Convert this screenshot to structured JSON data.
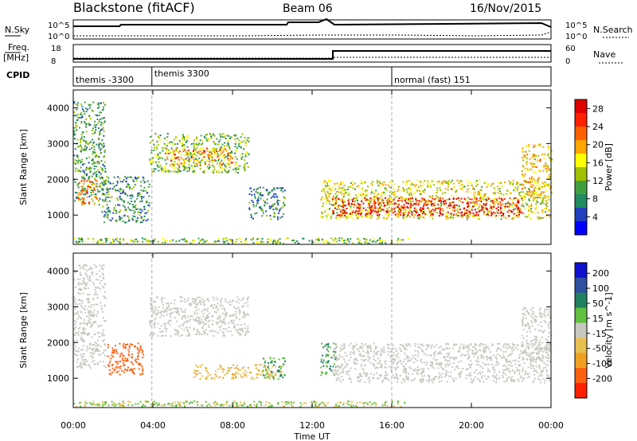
{
  "header": {
    "station": "Blackstone (fitACF)",
    "beam": "Beam 06",
    "date": "16/Nov/2015"
  },
  "noise_panel": {
    "left_label": "N.Sky",
    "right_label": "N.Search",
    "left_ticks": [
      "10^5",
      "10^0"
    ],
    "right_ticks": [
      "10^5",
      "10^0"
    ]
  },
  "freq_panel": {
    "left_label_top": "Freq.",
    "left_label_unit": "[MHz]",
    "left_ticks": [
      "18",
      "8"
    ],
    "right_label": "Nave",
    "right_ticks": [
      "60",
      "0"
    ]
  },
  "cpid_panel": {
    "label": "CPID",
    "programs": [
      {
        "name": "themis -3300",
        "start": 0.0
      },
      {
        "name": "themis 3300",
        "start": 3.95
      },
      {
        "name": "normal (fast) 151",
        "start": 16.0
      }
    ]
  },
  "chart_data": [
    {
      "type": "heatmap",
      "title": "Power",
      "ylabel": "Slant Range [km]",
      "xlabel": "Time UT",
      "x_ticks": [
        "00:00",
        "04:00",
        "08:00",
        "12:00",
        "16:00",
        "20:00",
        "00:00"
      ],
      "x_range_hours": [
        0,
        24
      ],
      "y_ticks": [
        1000,
        2000,
        3000,
        4000
      ],
      "ylim": [
        180,
        4500
      ],
      "colorbar_label": "Power [dB]",
      "colorbar_ticks": [
        4,
        8,
        12,
        16,
        20,
        24,
        28
      ],
      "colorbar_range": [
        0,
        30
      ],
      "colors": [
        "#0000ff",
        "#2040c0",
        "#208a60",
        "#40a040",
        "#a0c000",
        "#ffff00",
        "#ffa500",
        "#ff6000",
        "#ff2000",
        "#e00000"
      ],
      "blobs": [
        {
          "t0": 0.0,
          "t1": 1.6,
          "r0": 1300,
          "r1": 4200,
          "v": 10
        },
        {
          "t0": 0.2,
          "t1": 1.2,
          "r0": 1300,
          "r1": 2000,
          "v": 22
        },
        {
          "t0": 1.4,
          "t1": 3.8,
          "r0": 800,
          "r1": 2100,
          "v": 9
        },
        {
          "t0": 3.8,
          "t1": 8.8,
          "r0": 2200,
          "r1": 3300,
          "v": 12
        },
        {
          "t0": 4.5,
          "t1": 8.0,
          "r0": 2400,
          "r1": 2900,
          "v": 20
        },
        {
          "t0": 8.8,
          "t1": 10.6,
          "r0": 900,
          "r1": 1800,
          "v": 8
        },
        {
          "t0": 12.4,
          "t1": 23.9,
          "r0": 900,
          "r1": 2000,
          "v": 16
        },
        {
          "t0": 13.0,
          "t1": 22.5,
          "r0": 1000,
          "r1": 1500,
          "v": 28
        },
        {
          "t0": 22.5,
          "t1": 24.0,
          "r0": 1500,
          "r1": 3000,
          "v": 18
        }
      ]
    },
    {
      "type": "heatmap",
      "title": "Velocity",
      "ylabel": "Slant Range [km]",
      "xlabel": "Time UT",
      "x_ticks": [
        "00:00",
        "04:00",
        "08:00",
        "12:00",
        "16:00",
        "20:00",
        "00:00"
      ],
      "x_range_hours": [
        0,
        24
      ],
      "y_ticks": [
        1000,
        2000,
        3000,
        4000
      ],
      "ylim": [
        180,
        4500
      ],
      "colorbar_label": "Velocity [m s^-1]",
      "colorbar_ticks": [
        200,
        100,
        50,
        15,
        -15,
        -50,
        -100,
        -200
      ],
      "colors": [
        "#1010d0",
        "#3050a0",
        "#208060",
        "#60c040",
        "#c8c8c0",
        "#e8c050",
        "#f0a020",
        "#ff6010",
        "#ff2000"
      ],
      "blobs": [
        {
          "t0": 0.0,
          "t1": 1.6,
          "r0": 1300,
          "r1": 4200,
          "v": 0
        },
        {
          "t0": 1.7,
          "t1": 3.5,
          "r0": 1100,
          "r1": 2000,
          "v": -150
        },
        {
          "t0": 3.8,
          "t1": 8.8,
          "r0": 2200,
          "r1": 3300,
          "v": 0
        },
        {
          "t0": 6.0,
          "t1": 10.5,
          "r0": 1000,
          "r1": 1400,
          "v": -40
        },
        {
          "t0": 9.5,
          "t1": 10.6,
          "r0": 1000,
          "r1": 1600,
          "v": 45
        },
        {
          "t0": 12.4,
          "t1": 13.2,
          "r0": 1100,
          "r1": 2000,
          "v": 45
        },
        {
          "t0": 13.0,
          "t1": 23.9,
          "r0": 900,
          "r1": 2000,
          "v": 0
        },
        {
          "t0": 22.5,
          "t1": 24.0,
          "r0": 1500,
          "r1": 3000,
          "v": 0
        }
      ]
    }
  ]
}
